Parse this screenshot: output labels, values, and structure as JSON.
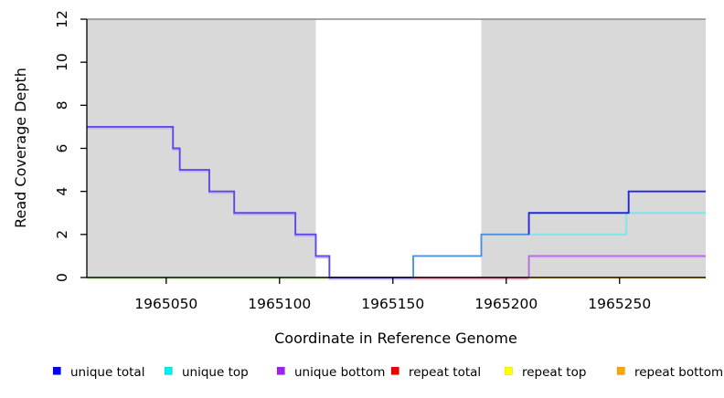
{
  "figure": {
    "xlabel": "Coordinate in Reference Genome",
    "ylabel": "Read Coverage Depth",
    "xlim": [
      1965015,
      1965288
    ],
    "ylim": [
      0,
      12
    ],
    "xticks": [
      1965050,
      1965100,
      1965150,
      1965200,
      1965250
    ],
    "yticks": [
      0,
      2,
      4,
      6,
      8,
      10,
      12
    ],
    "colors": {
      "background": "#ffffff",
      "shade": "#d9d9d9",
      "top_rule": "#8a8a8a",
      "axis": "#000000"
    },
    "shaded_regions": [
      {
        "from": 1965015,
        "to": 1965116
      },
      {
        "from": 1965189,
        "to": 1965288
      }
    ]
  },
  "chart_data": {
    "type": "line",
    "subtype": "step",
    "title": "",
    "xlabel": "Coordinate in Reference Genome",
    "ylabel": "Read Coverage Depth",
    "xlim": [
      1965015,
      1965288
    ],
    "ylim": [
      0,
      12
    ],
    "grid": false,
    "legend_position": "bottom",
    "series": [
      {
        "name": "unique total",
        "color": "#0000ee",
        "points": [
          [
            1965015,
            7
          ],
          [
            1965053,
            7
          ],
          [
            1965053,
            6
          ],
          [
            1965056,
            6
          ],
          [
            1965056,
            5
          ],
          [
            1965069,
            5
          ],
          [
            1965069,
            4
          ],
          [
            1965080,
            4
          ],
          [
            1965080,
            3
          ],
          [
            1965107,
            3
          ],
          [
            1965107,
            2
          ],
          [
            1965116,
            2
          ],
          [
            1965116,
            1
          ],
          [
            1965122,
            1
          ],
          [
            1965122,
            0
          ],
          [
            1965159,
            0
          ],
          [
            1965159,
            1
          ],
          [
            1965189,
            1
          ],
          [
            1965189,
            2
          ],
          [
            1965210,
            2
          ],
          [
            1965210,
            3
          ],
          [
            1965254,
            3
          ],
          [
            1965254,
            4
          ],
          [
            1965288,
            4
          ]
        ]
      },
      {
        "name": "unique top",
        "color": "#00eeee",
        "points": [
          [
            1965015,
            0
          ],
          [
            1965159,
            0
          ],
          [
            1965159,
            1
          ],
          [
            1965189,
            1
          ],
          [
            1965189,
            2
          ],
          [
            1965253,
            2
          ],
          [
            1965253,
            3
          ],
          [
            1965288,
            3
          ]
        ]
      },
      {
        "name": "unique bottom",
        "color": "#a020f0",
        "points": [
          [
            1965015,
            7
          ],
          [
            1965053,
            7
          ],
          [
            1965053,
            6
          ],
          [
            1965056,
            6
          ],
          [
            1965056,
            5
          ],
          [
            1965069,
            5
          ],
          [
            1965069,
            4
          ],
          [
            1965080,
            4
          ],
          [
            1965080,
            3
          ],
          [
            1965107,
            3
          ],
          [
            1965107,
            2
          ],
          [
            1965116,
            2
          ],
          [
            1965116,
            1
          ],
          [
            1965122,
            1
          ],
          [
            1965122,
            0
          ],
          [
            1965210,
            0
          ],
          [
            1965210,
            1
          ],
          [
            1965288,
            1
          ]
        ]
      },
      {
        "name": "repeat total",
        "color": "#ee0000",
        "points": [
          [
            1965015,
            0
          ],
          [
            1965288,
            0
          ]
        ]
      },
      {
        "name": "repeat top",
        "color": "#ffff00",
        "points": [
          [
            1965015,
            0
          ],
          [
            1965288,
            0
          ]
        ]
      },
      {
        "name": "repeat bottom",
        "color": "#ffa500",
        "points": [
          [
            1965015,
            0
          ],
          [
            1965288,
            0
          ]
        ]
      }
    ],
    "render_layers": [
      {
        "name": "baseline-green-segment",
        "color": "#76c979",
        "halo": "#eeeec2",
        "points": [
          [
            1965015,
            0
          ],
          [
            1965122,
            0
          ]
        ]
      },
      {
        "name": "baseline-red-segment",
        "color": "#d4506e",
        "halo": "#f2aac2",
        "points": [
          [
            1965159,
            0
          ],
          [
            1965210,
            0
          ]
        ]
      },
      {
        "name": "baseline-orange-segment",
        "color": "#ffa500",
        "points": [
          [
            1965210,
            0
          ],
          [
            1965288,
            0
          ]
        ]
      },
      {
        "name": "unique-bottom-right",
        "color": "#b36fd9",
        "halo": "#dcc2ee",
        "points": [
          [
            1965210,
            0
          ],
          [
            1965210,
            1
          ],
          [
            1965288,
            1
          ]
        ]
      },
      {
        "name": "unique-top-right",
        "color": "#7ce8e4",
        "points": [
          [
            1965210,
            2
          ],
          [
            1965253,
            2
          ],
          [
            1965253,
            3
          ],
          [
            1965288,
            3
          ]
        ]
      },
      {
        "name": "unique-total-left",
        "color": "#5a49e8",
        "halo": "#c0b4f2",
        "points": [
          [
            1965015,
            7
          ],
          [
            1965053,
            7
          ],
          [
            1965053,
            6
          ],
          [
            1965056,
            6
          ],
          [
            1965056,
            5
          ],
          [
            1965069,
            5
          ],
          [
            1965069,
            4
          ],
          [
            1965080,
            4
          ],
          [
            1965080,
            3
          ],
          [
            1965107,
            3
          ],
          [
            1965107,
            2
          ],
          [
            1965116,
            2
          ],
          [
            1965116,
            1
          ],
          [
            1965122,
            1
          ],
          [
            1965122,
            0
          ],
          [
            1965159,
            0
          ]
        ]
      },
      {
        "name": "unique-total-mid",
        "color": "#4a90e8",
        "points": [
          [
            1965159,
            0
          ],
          [
            1965159,
            1
          ],
          [
            1965189,
            1
          ],
          [
            1965189,
            2
          ],
          [
            1965210,
            2
          ]
        ]
      },
      {
        "name": "unique-total-right",
        "color": "#2626e2",
        "points": [
          [
            1965210,
            2
          ],
          [
            1965210,
            3
          ],
          [
            1965254,
            3
          ],
          [
            1965254,
            4
          ],
          [
            1965288,
            4
          ]
        ]
      }
    ]
  },
  "legend": {
    "items": [
      {
        "label": "unique total",
        "color": "#0000ee"
      },
      {
        "label": "unique top",
        "color": "#00eeee"
      },
      {
        "label": "unique bottom",
        "color": "#a020f0"
      },
      {
        "label": "repeat total",
        "color": "#ee0000"
      },
      {
        "label": "repeat top",
        "color": "#ffff00"
      },
      {
        "label": "repeat bottom",
        "color": "#ffa500"
      }
    ]
  }
}
